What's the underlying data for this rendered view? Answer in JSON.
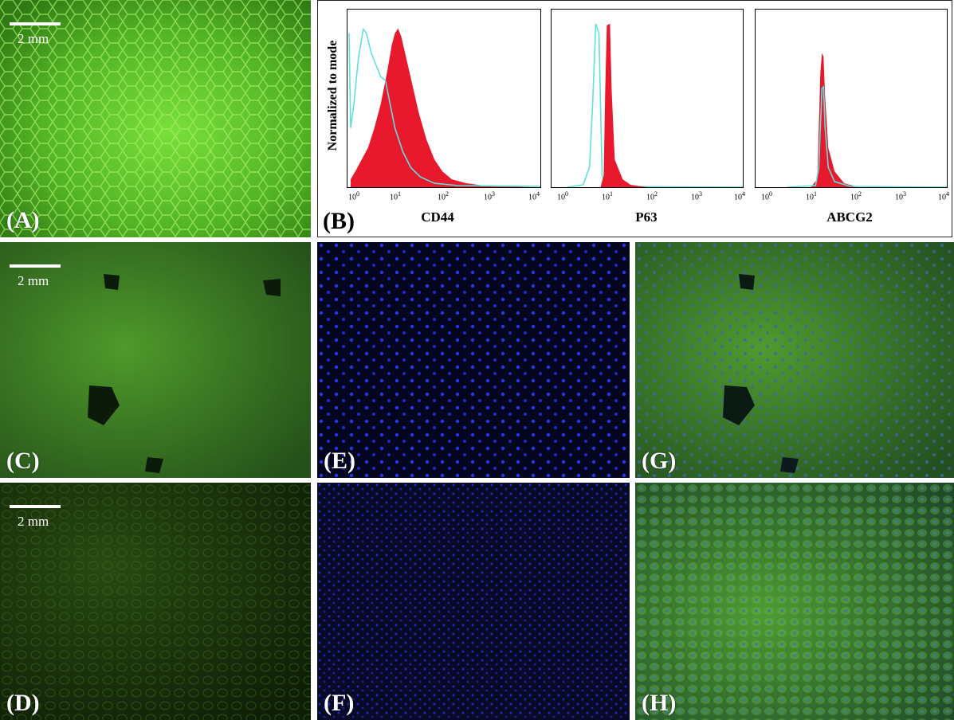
{
  "panels": {
    "a": {
      "label": "(A)",
      "scale": "2 mm"
    },
    "b": {
      "label": "(B)",
      "ylabel": "Normalized to mode"
    },
    "c": {
      "label": "(C)",
      "scale": "2 mm"
    },
    "d": {
      "label": "(D)",
      "scale": "2 mm"
    },
    "e": {
      "label": "(E)"
    },
    "f": {
      "label": "(F)"
    },
    "g": {
      "label": "(G)"
    },
    "h": {
      "label": "(H)"
    }
  },
  "histograms": [
    {
      "marker": "CD44",
      "ticks": [
        "10",
        "10",
        "10",
        "10",
        "10"
      ],
      "exps": [
        "0",
        "1",
        "2",
        "3",
        "4"
      ]
    },
    {
      "marker": "P63",
      "ticks": [
        "10",
        "10",
        "10",
        "10",
        "10"
      ],
      "exps": [
        "0",
        "1",
        "2",
        "3",
        "4"
      ]
    },
    {
      "marker": "ABCG2",
      "ticks": [
        "10",
        "10",
        "10",
        "10",
        "10"
      ],
      "exps": [
        "0",
        "1",
        "2",
        "3",
        "4"
      ]
    }
  ],
  "colors": {
    "fill_stained": "#e8192c",
    "line_control": "#5fe0e0",
    "green": "#56c02a",
    "blue_nuclei": "#2233ff"
  }
}
